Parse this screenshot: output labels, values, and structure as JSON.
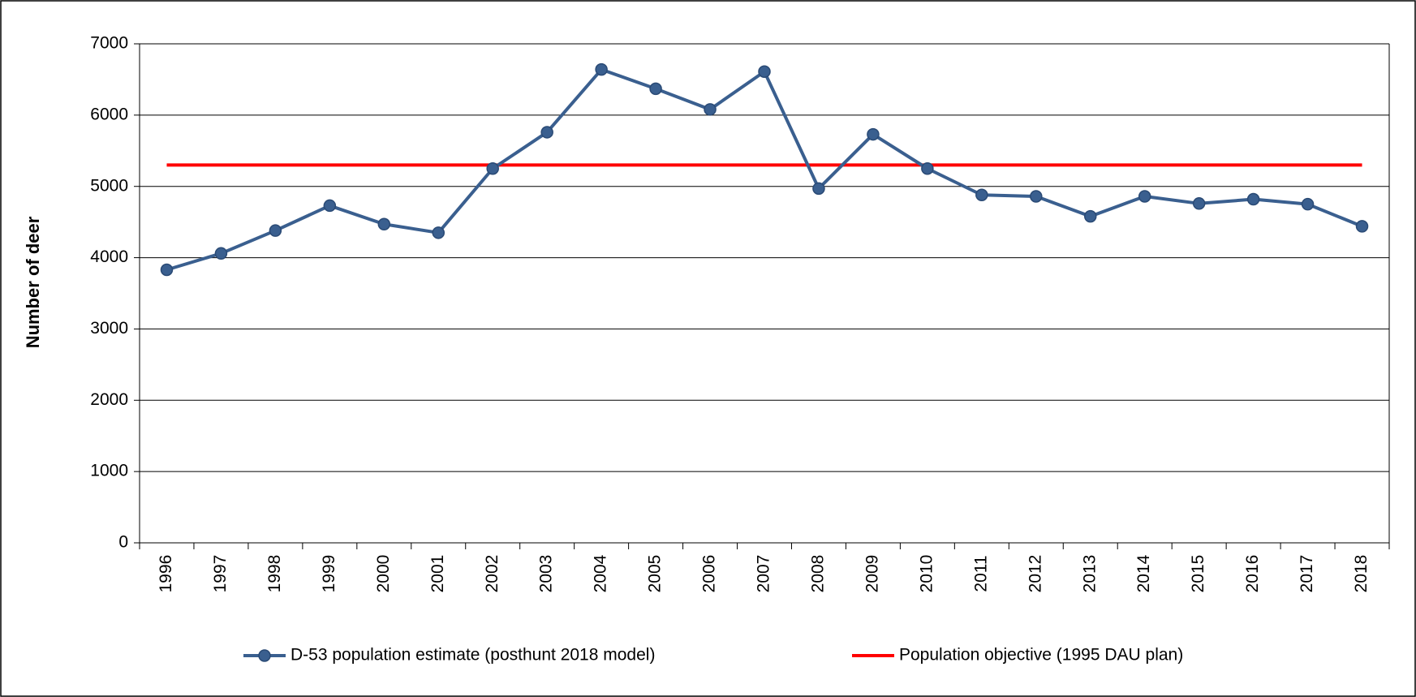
{
  "chart_data": {
    "type": "line",
    "y_label": "Number of deer",
    "categories": [
      "1996",
      "1997",
      "1998",
      "1999",
      "2000",
      "2001",
      "2002",
      "2003",
      "2004",
      "2005",
      "2006",
      "2007",
      "2008",
      "2009",
      "2010",
      "2011",
      "2012",
      "2013",
      "2014",
      "2015",
      "2016",
      "2017",
      "2018"
    ],
    "series": [
      {
        "name": "D-53 population estimate (posthunt 2018 model)",
        "color": "#3a5f8f",
        "marker": true,
        "values": [
          3830,
          4060,
          4380,
          4730,
          4470,
          4350,
          5250,
          5760,
          6640,
          6370,
          6080,
          6610,
          4970,
          5730,
          5250,
          4880,
          4860,
          4580,
          4860,
          4760,
          4820,
          4750,
          4440
        ]
      },
      {
        "name": "Population objective (1995 DAU plan)",
        "color": "#ff0000",
        "marker": false,
        "values": [
          5300,
          5300,
          5300,
          5300,
          5300,
          5300,
          5300,
          5300,
          5300,
          5300,
          5300,
          5300,
          5300,
          5300,
          5300,
          5300,
          5300,
          5300,
          5300,
          5300,
          5300,
          5300,
          5300
        ]
      }
    ],
    "ylim": [
      0,
      7000
    ],
    "yticks": [
      0,
      1000,
      2000,
      3000,
      4000,
      5000,
      6000,
      7000
    ],
    "grid": true,
    "legend": "bottom"
  }
}
